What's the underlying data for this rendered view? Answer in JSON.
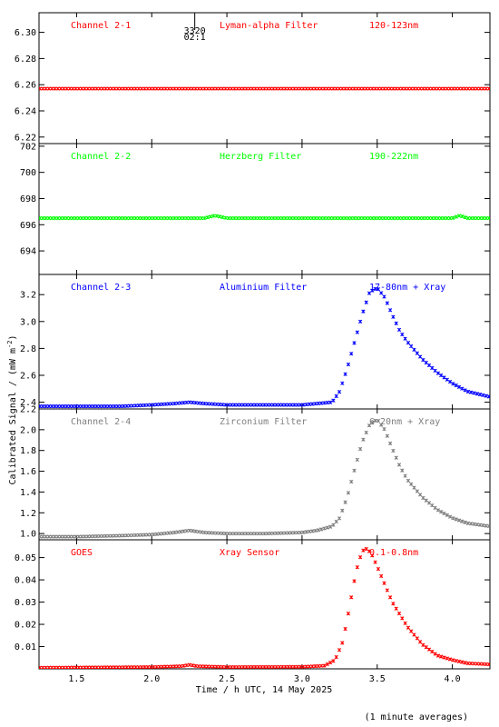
{
  "figure": {
    "ylabel_text": "Calibrated Signal / (mW m",
    "ylabel_sup": "-2",
    "ylabel_close": ")",
    "xlabel": "Time / h UTC, 14 May 2025",
    "note": "(1 minute averages)",
    "x_ticks": [
      "1.5",
      "2.0",
      "2.5",
      "3.0",
      "3.5",
      "4.0"
    ]
  },
  "marker": {
    "line1": "3320",
    "line2": "02:1",
    "x": 2.25
  },
  "chart_data": [
    {
      "type": "scatter",
      "labels": {
        "channel": "Channel 2-1",
        "filter": "Lyman-alpha Filter",
        "band": "120-123nm"
      },
      "color": "#ff0000",
      "xlim": [
        1.25,
        4.25
      ],
      "ylim": [
        6.215,
        6.315
      ],
      "y_ticks": [
        "6.22",
        "6.24",
        "6.26",
        "6.28",
        "6.30"
      ],
      "x": [
        1.25,
        4.25
      ],
      "y": [
        6.257,
        6.257
      ]
    },
    {
      "type": "scatter",
      "labels": {
        "channel": "Channel 2-2",
        "filter": "Herzberg Filter",
        "band": "190-222nm"
      },
      "color": "#00ff00",
      "xlim": [
        1.25,
        4.25
      ],
      "ylim": [
        692.2,
        702.2
      ],
      "y_ticks": [
        "694",
        "696",
        "698",
        "700",
        "702"
      ],
      "x": [
        1.25,
        2.0,
        2.35,
        2.42,
        2.5,
        3.0,
        3.5,
        4.0,
        4.05,
        4.1,
        4.25
      ],
      "y": [
        696.5,
        696.5,
        696.5,
        696.7,
        696.5,
        696.5,
        696.5,
        696.5,
        696.7,
        696.5,
        696.5
      ]
    },
    {
      "type": "scatter",
      "labels": {
        "channel": "Channel 2-3",
        "filter": "Aluminium Filter",
        "band": "17-80nm + Xray"
      },
      "color": "#0000ff",
      "xlim": [
        1.25,
        4.25
      ],
      "ylim": [
        2.35,
        3.35
      ],
      "y_ticks": [
        "2.4",
        "2.6",
        "2.8",
        "3.0",
        "3.2"
      ],
      "x": [
        1.25,
        1.5,
        1.8,
        2.0,
        2.15,
        2.25,
        2.35,
        2.5,
        2.75,
        3.0,
        3.1,
        3.2,
        3.25,
        3.3,
        3.35,
        3.4,
        3.45,
        3.5,
        3.55,
        3.6,
        3.65,
        3.7,
        3.8,
        3.9,
        4.0,
        4.1,
        4.25
      ],
      "y": [
        2.37,
        2.37,
        2.37,
        2.38,
        2.39,
        2.4,
        2.39,
        2.38,
        2.38,
        2.38,
        2.39,
        2.4,
        2.48,
        2.65,
        2.85,
        3.05,
        3.22,
        3.25,
        3.18,
        3.05,
        2.93,
        2.85,
        2.72,
        2.62,
        2.54,
        2.48,
        2.44
      ]
    },
    {
      "type": "scatter",
      "labels": {
        "channel": "Channel 2-4",
        "filter": "Zirconium Filter",
        "band": "6-20nm + Xray"
      },
      "color": "#7f7f7f",
      "xlim": [
        1.25,
        4.25
      ],
      "ylim": [
        0.94,
        2.2
      ],
      "y_ticks": [
        "1.0",
        "1.2",
        "1.4",
        "1.6",
        "1.8",
        "2.0",
        "2.2"
      ],
      "x": [
        1.25,
        1.5,
        1.8,
        2.0,
        2.15,
        2.25,
        2.35,
        2.5,
        2.75,
        3.0,
        3.1,
        3.2,
        3.25,
        3.3,
        3.35,
        3.4,
        3.45,
        3.5,
        3.55,
        3.6,
        3.65,
        3.7,
        3.8,
        3.9,
        4.0,
        4.1,
        4.25
      ],
      "y": [
        0.97,
        0.97,
        0.98,
        0.99,
        1.01,
        1.03,
        1.01,
        1.0,
        1.0,
        1.01,
        1.03,
        1.07,
        1.15,
        1.35,
        1.62,
        1.88,
        2.05,
        2.1,
        2.0,
        1.82,
        1.65,
        1.52,
        1.35,
        1.23,
        1.15,
        1.1,
        1.07
      ]
    },
    {
      "type": "scatter",
      "labels": {
        "channel": "GOES",
        "filter": "Xray Sensor",
        "band": "0.1-0.8nm"
      },
      "color": "#ff0000",
      "xlim": [
        1.25,
        4.25
      ],
      "ylim": [
        0.0,
        0.058
      ],
      "y_ticks": [
        "0.01",
        "0.02",
        "0.03",
        "0.04",
        "0.05"
      ],
      "x": [
        1.25,
        1.5,
        2.0,
        2.2,
        2.25,
        2.3,
        2.5,
        3.0,
        3.15,
        3.22,
        3.27,
        3.3,
        3.33,
        3.36,
        3.4,
        3.43,
        3.46,
        3.5,
        3.55,
        3.6,
        3.7,
        3.8,
        3.9,
        4.0,
        4.1,
        4.25
      ],
      "y": [
        0.0005,
        0.0006,
        0.0008,
        0.0012,
        0.0018,
        0.0012,
        0.0008,
        0.0009,
        0.0014,
        0.004,
        0.012,
        0.022,
        0.033,
        0.044,
        0.053,
        0.054,
        0.052,
        0.046,
        0.038,
        0.03,
        0.019,
        0.011,
        0.006,
        0.004,
        0.0025,
        0.002
      ]
    }
  ]
}
